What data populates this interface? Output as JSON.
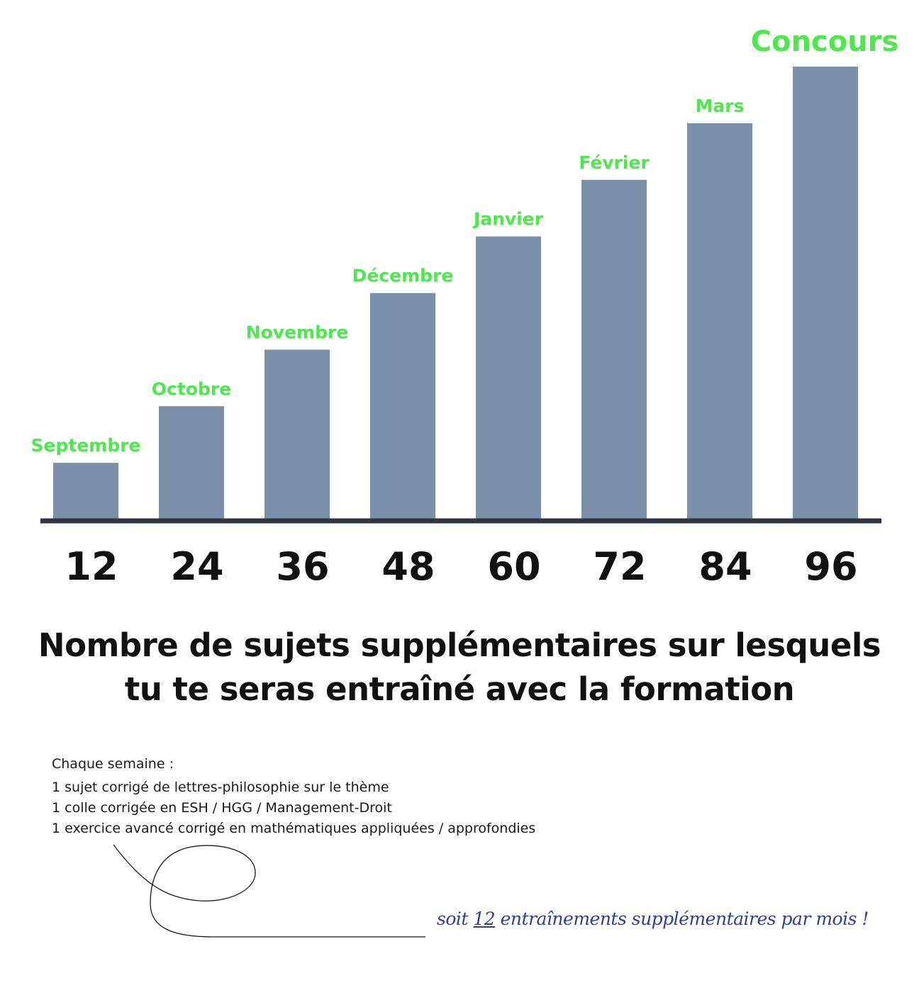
{
  "colors": {
    "bar": "#7b91a9",
    "baseline": "#2f3640",
    "bar_label": "#4de94c",
    "value_label": "#111111",
    "hand_note": "#2a3f9e"
  },
  "chart_data": {
    "type": "bar",
    "categories": [
      "Septembre",
      "Octobre",
      "Novembre",
      "Décembre",
      "Janvier",
      "Février",
      "Mars",
      "Concours"
    ],
    "values": [
      12,
      24,
      36,
      48,
      60,
      72,
      84,
      96
    ],
    "tick_labels": [
      "12",
      "24",
      "36",
      "48",
      "60",
      "72",
      "84",
      "96"
    ],
    "title": "Nombre de sujets supplémentaires sur lesquels tu te seras entraîné avec la formation",
    "xlabel": "",
    "ylabel": "",
    "ylim": [
      0,
      96
    ],
    "grid": false,
    "legend": "none"
  },
  "title": {
    "line1": "Nombre de sujets supplémentaires sur lesquels",
    "line2": "tu te seras entraîné avec la formation"
  },
  "notes": {
    "heading": "Chaque semaine :",
    "items": [
      "1 sujet corrigé de lettres-philosophie sur le thème",
      "1 colle corrigée en ESH / HGG / Management-Droit",
      "1 exercice avancé corrigé en mathématiques appliquées / approfondies"
    ]
  },
  "hand_note": {
    "prefix": "soit ",
    "number": "12",
    "suffix": " entraînements supplémentaires par mois !"
  }
}
